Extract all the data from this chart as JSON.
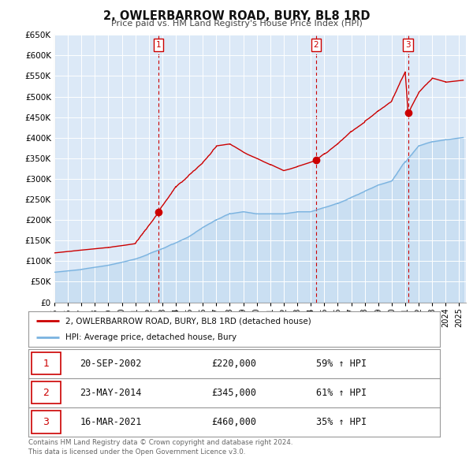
{
  "title": "2, OWLERBARROW ROAD, BURY, BL8 1RD",
  "subtitle": "Price paid vs. HM Land Registry's House Price Index (HPI)",
  "background_color": "#ffffff",
  "plot_bg_color": "#dce9f7",
  "grid_color": "#ffffff",
  "hpi_line_color": "#7ab3e0",
  "price_line_color": "#cc0000",
  "ylim": [
    0,
    650000
  ],
  "yticks": [
    0,
    50000,
    100000,
    150000,
    200000,
    250000,
    300000,
    350000,
    400000,
    450000,
    500000,
    550000,
    600000,
    650000
  ],
  "ytick_labels": [
    "£0",
    "£50K",
    "£100K",
    "£150K",
    "£200K",
    "£250K",
    "£300K",
    "£350K",
    "£400K",
    "£450K",
    "£500K",
    "£550K",
    "£600K",
    "£650K"
  ],
  "xmin": 1995.0,
  "xmax": 2025.5,
  "sale_dates": [
    2002.72,
    2014.39,
    2021.21
  ],
  "sale_prices": [
    220000,
    345000,
    460000
  ],
  "sale_labels": [
    "1",
    "2",
    "3"
  ],
  "vline_color": "#cc0000",
  "sale_marker_color": "#cc0000",
  "legend_label_red": "2, OWLERBARROW ROAD, BURY, BL8 1RD (detached house)",
  "legend_label_blue": "HPI: Average price, detached house, Bury",
  "table_rows": [
    {
      "num": "1",
      "date": "20-SEP-2002",
      "price": "£220,000",
      "change": "59% ↑ HPI"
    },
    {
      "num": "2",
      "date": "23-MAY-2014",
      "price": "£345,000",
      "change": "61% ↑ HPI"
    },
    {
      "num": "3",
      "date": "16-MAR-2021",
      "price": "£460,000",
      "change": "35% ↑ HPI"
    }
  ],
  "footer": "Contains HM Land Registry data © Crown copyright and database right 2024.\nThis data is licensed under the Open Government Licence v3.0."
}
